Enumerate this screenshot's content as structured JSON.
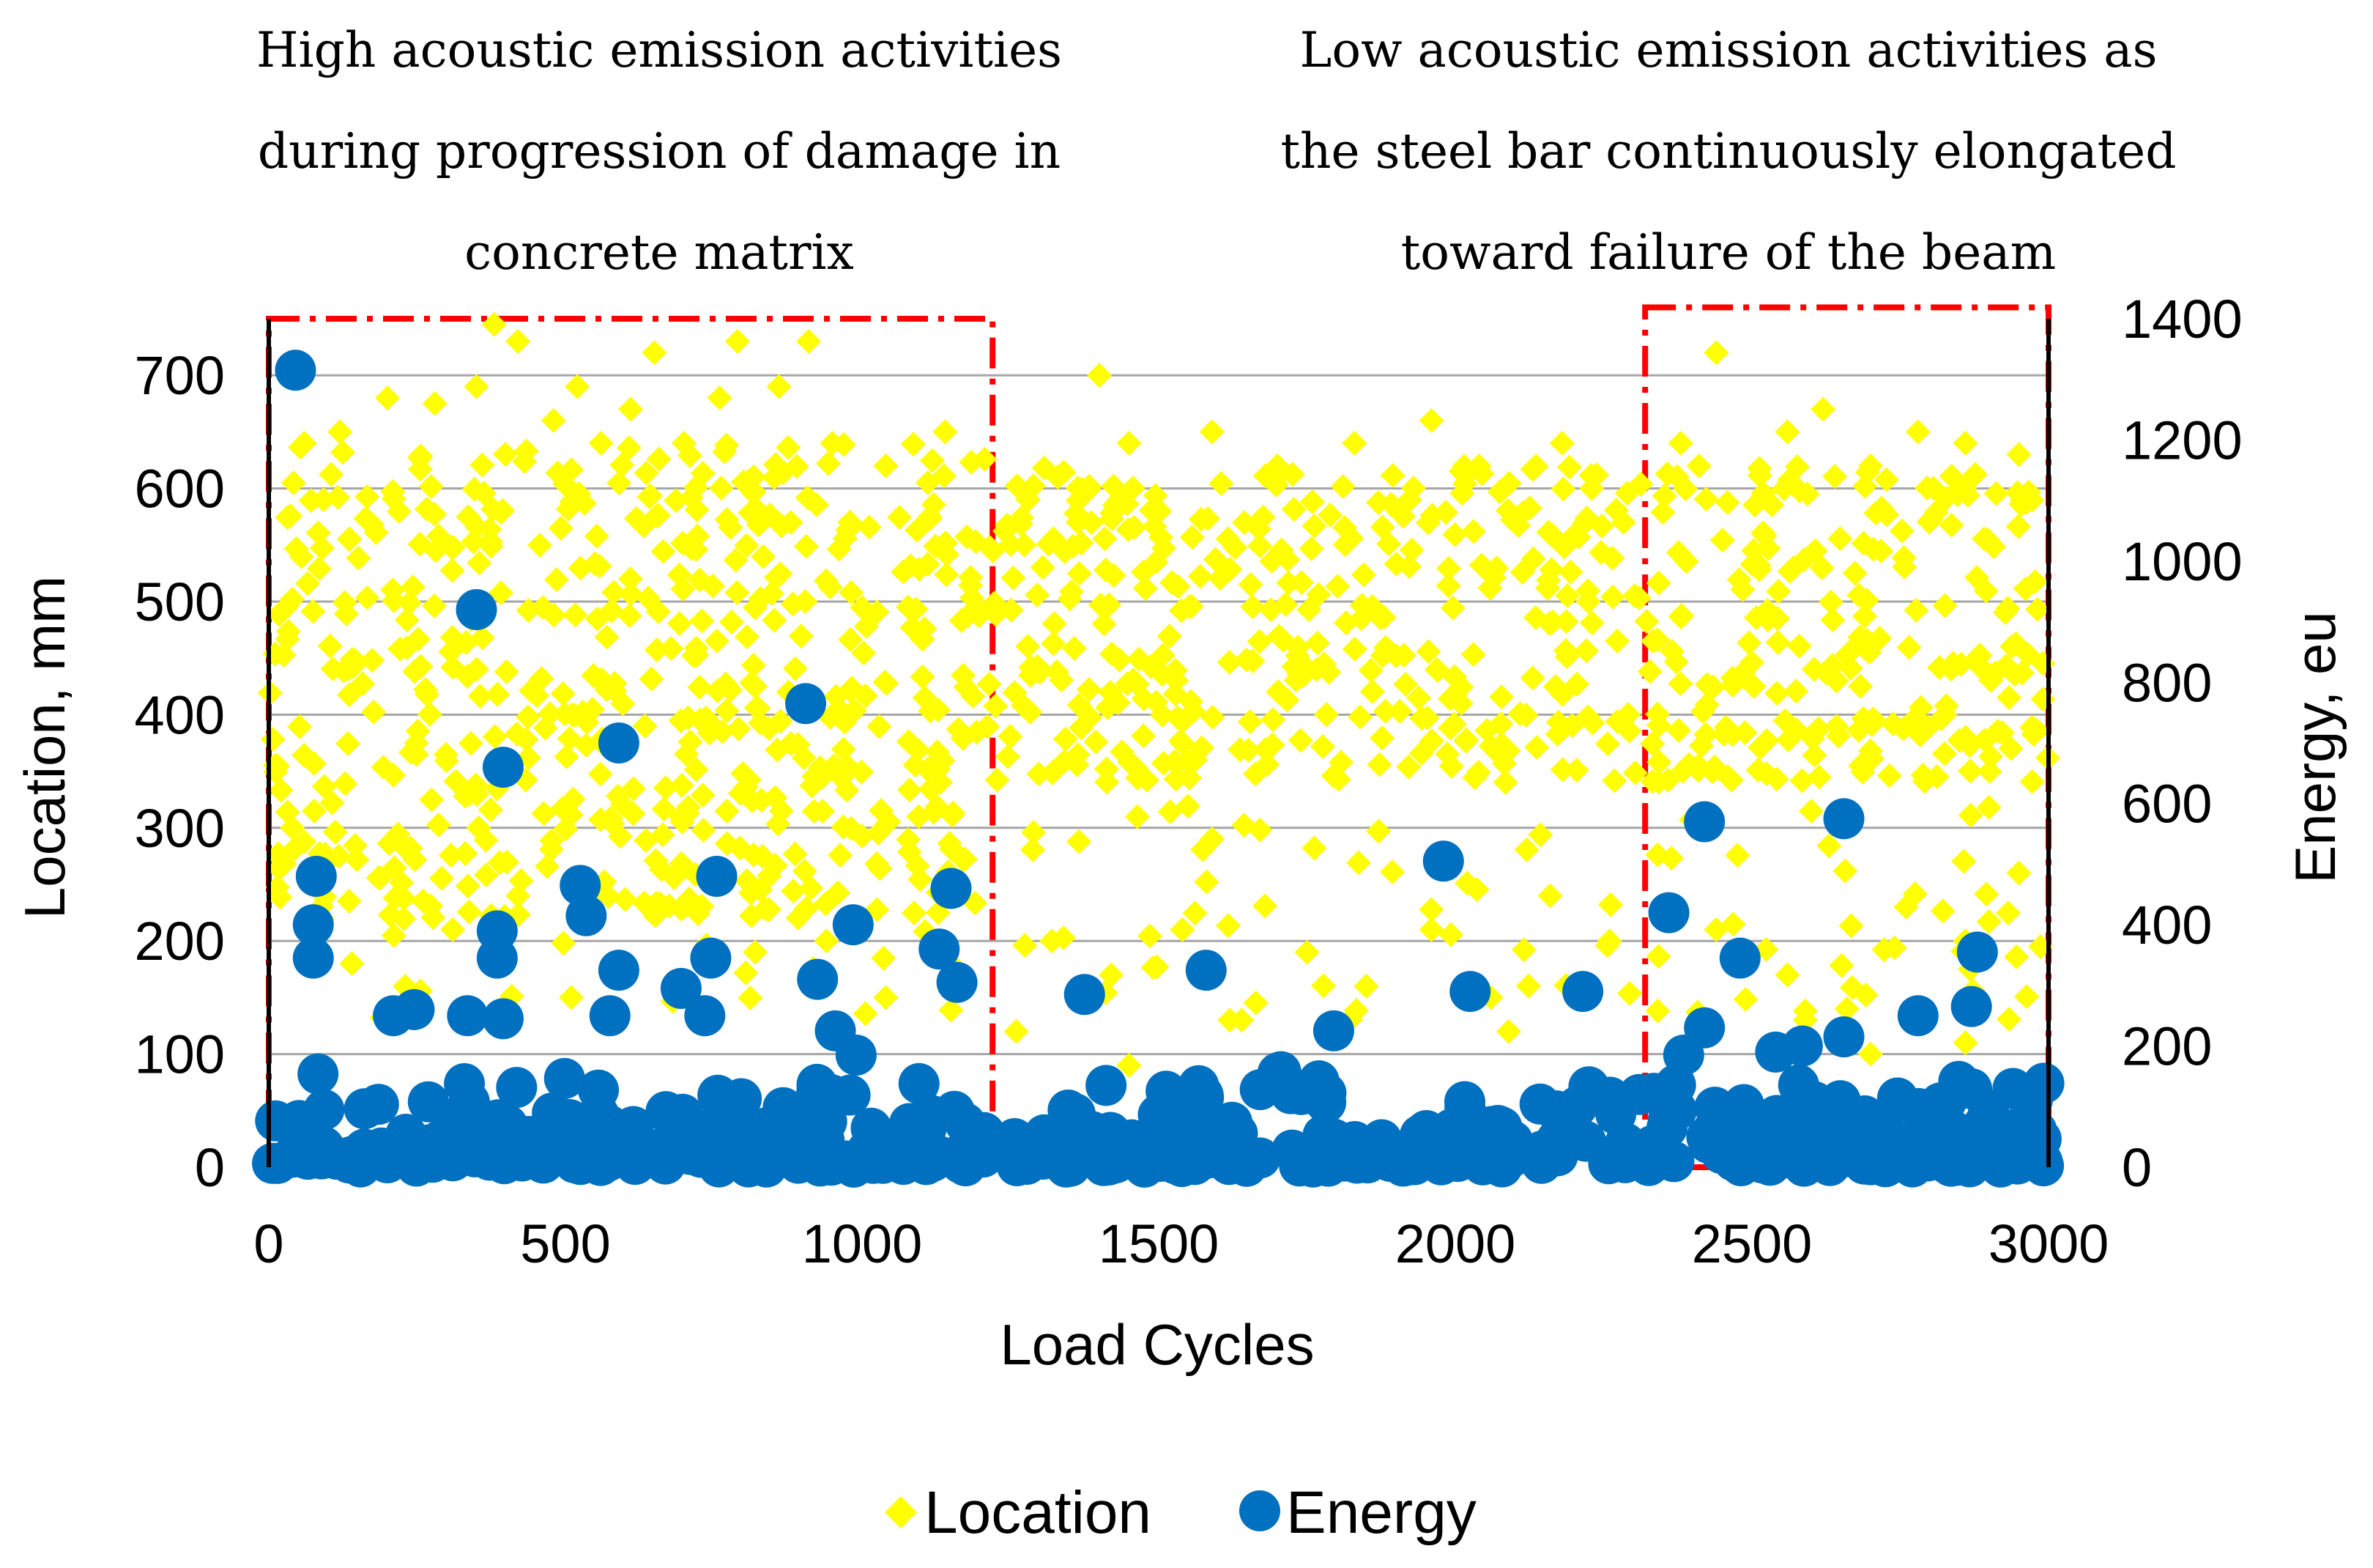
{
  "annotations": {
    "left": [
      "High acoustic emission activities",
      "during progression of damage in",
      "concrete matrix"
    ],
    "right": [
      "Low acoustic emission activities as",
      "the steel bar continuously elongated",
      "toward failure of the beam"
    ]
  },
  "colors": {
    "location": "#FFFF00",
    "energy": "#0070C0",
    "box": "#FF0000",
    "grid": "#A6A6A6"
  },
  "chart_data": {
    "type": "scatter",
    "xlabel": "Load Cycles",
    "ylabel": "Location, mm",
    "y2label": "Energy, eu",
    "xlim": [
      0,
      3000
    ],
    "ylim": [
      0,
      750
    ],
    "y2lim": [
      0,
      1400
    ],
    "xticks": [
      0,
      500,
      1000,
      1500,
      2000,
      2500,
      3000
    ],
    "yticks": [
      0,
      100,
      200,
      300,
      400,
      500,
      600,
      700
    ],
    "y2ticks": [
      0,
      200,
      400,
      600,
      800,
      1000,
      1200,
      1400
    ],
    "gridlines": "horizontal",
    "legend_position": "bottom",
    "highlight_regions": [
      {
        "x": [
          0,
          1220
        ],
        "y": [
          0,
          750
        ],
        "label": "High acoustic emission activities during progression of damage in concrete matrix"
      },
      {
        "x": [
          2320,
          3000
        ],
        "y": [
          0,
          760
        ],
        "label": "Low acoustic emission activities as the steel bar continuously elongated toward failure of the beam"
      }
    ],
    "series": [
      {
        "name": "Location",
        "axis": "left",
        "marker": "diamond",
        "points": [
          [
            60,
            640
          ],
          [
            120,
            650
          ],
          [
            200,
            680
          ],
          [
            280,
            675
          ],
          [
            350,
            690
          ],
          [
            380,
            745
          ],
          [
            420,
            730
          ],
          [
            480,
            660
          ],
          [
            520,
            690
          ],
          [
            560,
            640
          ],
          [
            610,
            670
          ],
          [
            650,
            720
          ],
          [
            700,
            640
          ],
          [
            760,
            680
          ],
          [
            790,
            730
          ],
          [
            860,
            690
          ],
          [
            910,
            730
          ],
          [
            950,
            640
          ],
          [
            1040,
            620
          ],
          [
            1140,
            650
          ],
          [
            1280,
            590
          ],
          [
            1330,
            610
          ],
          [
            1400,
            700
          ],
          [
            1450,
            640
          ],
          [
            1590,
            650
          ],
          [
            1700,
            620
          ],
          [
            1830,
            640
          ],
          [
            1960,
            660
          ],
          [
            2040,
            620
          ],
          [
            2180,
            640
          ],
          [
            2230,
            600
          ],
          [
            2380,
            640
          ],
          [
            2440,
            720
          ],
          [
            2560,
            650
          ],
          [
            2620,
            670
          ],
          [
            2700,
            620
          ],
          [
            2780,
            650
          ],
          [
            2860,
            640
          ],
          [
            2950,
            630
          ],
          [
            40,
            300
          ],
          [
            90,
            220
          ],
          [
            140,
            180
          ],
          [
            230,
            160
          ],
          [
            310,
            210
          ],
          [
            420,
            240
          ],
          [
            510,
            150
          ],
          [
            600,
            170
          ],
          [
            700,
            230
          ],
          [
            820,
            190
          ],
          [
            940,
            200
          ],
          [
            1040,
            150
          ],
          [
            1150,
            180
          ],
          [
            1260,
            120
          ],
          [
            1320,
            200
          ],
          [
            1420,
            170
          ],
          [
            1540,
            210
          ],
          [
            1640,
            130
          ],
          [
            1750,
            190
          ],
          [
            1850,
            160
          ],
          [
            1960,
            210
          ],
          [
            2060,
            150
          ],
          [
            2160,
            240
          ],
          [
            2260,
            200
          ],
          [
            2440,
            210
          ],
          [
            2560,
            170
          ],
          [
            2660,
            140
          ],
          [
            2760,
            230
          ],
          [
            2860,
            200
          ],
          [
            2950,
            260
          ],
          [
            1450,
            90
          ],
          [
            1620,
            130
          ],
          [
            2090,
            120
          ],
          [
            2590,
            130
          ],
          [
            2700,
            100
          ],
          [
            2860,
            110
          ]
        ]
      },
      {
        "name": "Energy",
        "axis": "right",
        "marker": "circle",
        "points": [
          [
            45,
            1315
          ],
          [
            350,
            920
          ],
          [
            395,
            660
          ],
          [
            590,
            700
          ],
          [
            905,
            765
          ],
          [
            80,
            480
          ],
          [
            75,
            400
          ],
          [
            75,
            345
          ],
          [
            525,
            465
          ],
          [
            535,
            415
          ],
          [
            385,
            390
          ],
          [
            385,
            345
          ],
          [
            575,
            250
          ],
          [
            590,
            325
          ],
          [
            755,
            480
          ],
          [
            745,
            345
          ],
          [
            985,
            400
          ],
          [
            1130,
            360
          ],
          [
            1150,
            460
          ],
          [
            1160,
            305
          ],
          [
            925,
            310
          ],
          [
            955,
            225
          ],
          [
            990,
            185
          ],
          [
            695,
            295
          ],
          [
            735,
            250
          ],
          [
            395,
            245
          ],
          [
            210,
            250
          ],
          [
            245,
            260
          ],
          [
            335,
            250
          ],
          [
            1375,
            285
          ],
          [
            1580,
            325
          ],
          [
            1980,
            505
          ],
          [
            2025,
            290
          ],
          [
            2215,
            290
          ],
          [
            1795,
            225
          ],
          [
            2360,
            420
          ],
          [
            2420,
            570
          ],
          [
            2420,
            230
          ],
          [
            2385,
            185
          ],
          [
            2480,
            345
          ],
          [
            2655,
            575
          ],
          [
            2655,
            215
          ],
          [
            2780,
            250
          ],
          [
            2870,
            265
          ],
          [
            2880,
            355
          ],
          [
            2540,
            190
          ],
          [
            2585,
            200
          ],
          [
            2310,
            120
          ],
          [
            2940,
            130
          ],
          [
            2980,
            60
          ]
        ]
      }
    ]
  },
  "legend": {
    "location_label": "Location",
    "energy_label": "Energy"
  }
}
